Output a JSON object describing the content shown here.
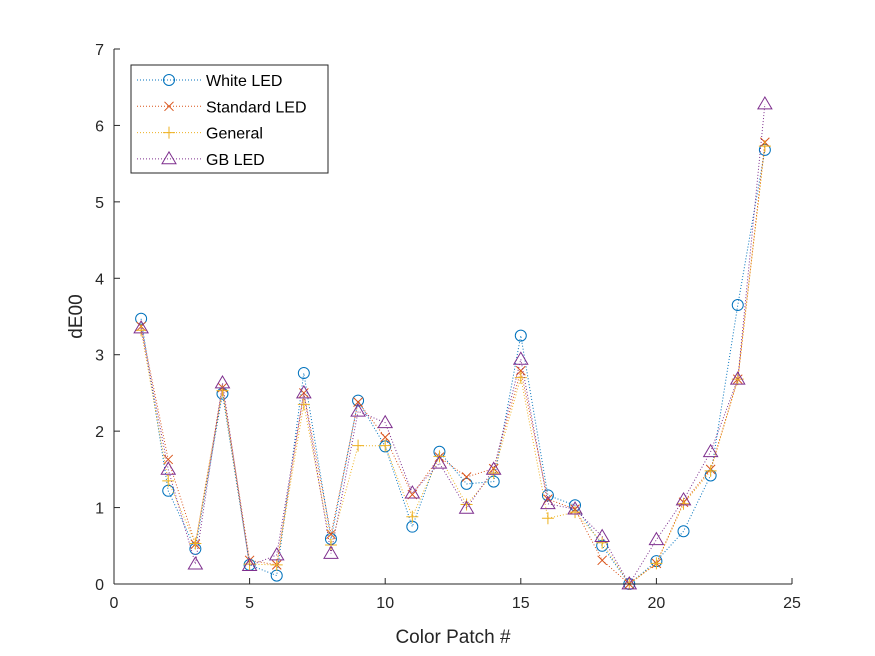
{
  "chart_data": {
    "type": "line",
    "xlabel": "Color Patch #",
    "ylabel": "dE00",
    "xlim": [
      0,
      25
    ],
    "ylim": [
      0,
      7
    ],
    "xticks": [
      0,
      5,
      10,
      15,
      20,
      25
    ],
    "yticks": [
      0,
      1,
      2,
      3,
      4,
      5,
      6,
      7
    ],
    "grid": false,
    "legend_position": "top-left",
    "x": [
      1,
      2,
      3,
      4,
      5,
      6,
      7,
      8,
      9,
      10,
      11,
      12,
      13,
      14,
      15,
      16,
      17,
      18,
      19,
      20,
      21,
      22,
      23,
      24
    ],
    "series": [
      {
        "name": "White LED",
        "marker": "circle",
        "color": "#0072BD",
        "values": [
          3.47,
          1.22,
          0.46,
          2.49,
          0.25,
          0.11,
          2.76,
          0.59,
          2.4,
          1.8,
          0.75,
          1.73,
          1.31,
          1.34,
          3.25,
          1.16,
          1.03,
          0.5,
          0.0,
          0.3,
          0.69,
          1.42,
          3.65,
          5.68
        ]
      },
      {
        "name": "Standard LED",
        "marker": "x",
        "color": "#D95319",
        "values": [
          3.37,
          1.63,
          0.52,
          2.57,
          0.31,
          0.25,
          2.5,
          0.65,
          2.38,
          1.92,
          1.17,
          1.66,
          1.4,
          1.51,
          2.79,
          1.11,
          0.98,
          0.31,
          0.0,
          0.27,
          1.07,
          1.5,
          2.68,
          5.78
        ]
      },
      {
        "name": "General",
        "marker": "plus",
        "color": "#EDB120",
        "values": [
          3.32,
          1.35,
          0.53,
          2.53,
          0.26,
          0.25,
          2.35,
          0.51,
          1.81,
          1.81,
          0.88,
          1.67,
          1.04,
          1.45,
          2.7,
          0.86,
          0.94,
          0.54,
          0.0,
          0.27,
          1.05,
          1.48,
          2.68,
          5.73
        ]
      },
      {
        "name": "GB LED",
        "marker": "triangle",
        "color": "#7E2F8E",
        "values": [
          3.35,
          1.5,
          0.26,
          2.63,
          0.24,
          0.38,
          2.5,
          0.4,
          2.26,
          2.11,
          1.19,
          1.58,
          0.99,
          1.5,
          2.94,
          1.05,
          0.98,
          0.62,
          0.0,
          0.58,
          1.1,
          1.73,
          2.68,
          6.28
        ]
      }
    ]
  }
}
